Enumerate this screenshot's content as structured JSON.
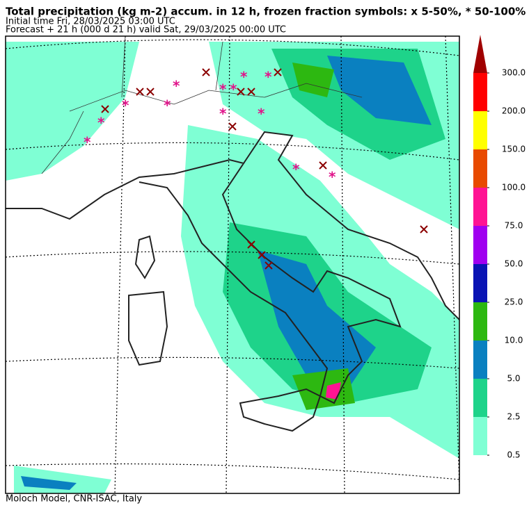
{
  "header": {
    "title": "Total precipitation (kg m-2) accum. in 12 h, frozen fraction symbols: x 5-50%, * 50-100%",
    "initial_time": "Initial time  Fri, 28/03/2025  03:00 UTC",
    "forecast": "Forecast  +  21 h  (000 d 21 h)  valid Sat, 29/03/2025 00:00 UTC"
  },
  "colorbar": {
    "levels": [
      0.5,
      2.5,
      {
        "value": 5,
        "label": "5.0"
      },
      {
        "value": 10,
        "label": "10.0"
      },
      {
        "value": 25,
        "label": "25.0"
      },
      {
        "value": 50,
        "label": "50.0"
      },
      {
        "value": 75,
        "label": "75.0"
      },
      {
        "value": 100,
        "label": "100.0"
      },
      {
        "value": 150,
        "label": "150.0"
      },
      {
        "value": 200,
        "label": "200.0"
      },
      {
        "value": 300,
        "label": "300.0"
      }
    ],
    "colors": [
      "#7fffd4",
      "#1ed38a",
      "#0a80c0",
      "#2db811",
      "#0a14b4",
      "#a000f0",
      "#ff1493",
      "#e84a00",
      "#ffff00",
      "#ff0000"
    ],
    "extend_color": "#a00000"
  },
  "footer": "Moloch Model, CNR-ISAC, Italy"
}
